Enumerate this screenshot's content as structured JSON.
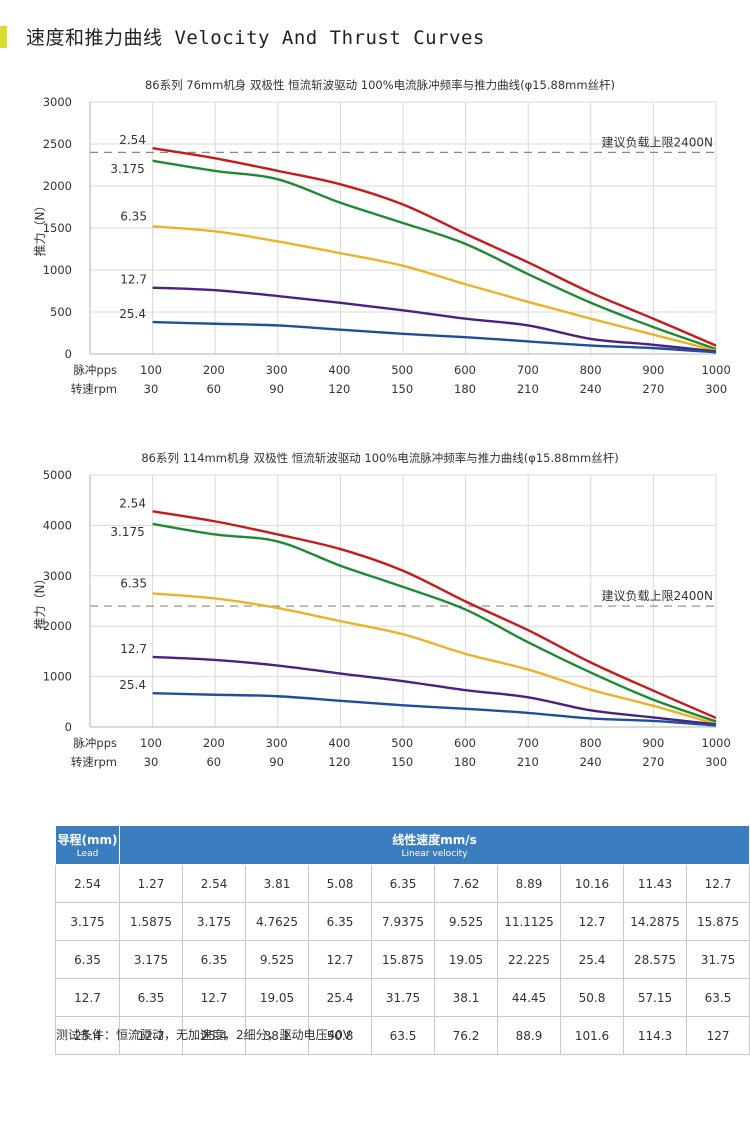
{
  "header": {
    "title": "速度和推力曲线 Velocity And Thrust Curves",
    "accent_color": "#d8df2a"
  },
  "colors": {
    "2.54": "#c8191b",
    "3.175": "#1e8a36",
    "6.35": "#ecb22a",
    "12.7": "#4a2180",
    "25.4": "#1f4f9c",
    "limit": "#888888"
  },
  "chart_data": [
    {
      "type": "line",
      "title": "86系列 76mm机身 双极性 恒流斩波驱动 100%电流脉冲频率与推力曲线(φ15.88mm丝杆)",
      "ylabel": "推力（N）",
      "ylim": [
        0,
        3000
      ],
      "yticks": [
        "0",
        "500",
        "1000",
        "1500",
        "2000",
        "2500",
        "3000"
      ],
      "x_axis_labels": [
        "脉冲pps",
        "转速rpm"
      ],
      "pps": [
        "100",
        "200",
        "300",
        "400",
        "500",
        "600",
        "700",
        "800",
        "900",
        "1000"
      ],
      "rpm": [
        "30",
        "60",
        "90",
        "120",
        "150",
        "180",
        "210",
        "240",
        "270",
        "300"
      ],
      "x": [
        100,
        200,
        300,
        400,
        500,
        600,
        700,
        800,
        900,
        1000
      ],
      "limit": {
        "value": 2400,
        "label": "建议负载上限2400N"
      },
      "series": [
        {
          "name": "2.54",
          "values": [
            2450,
            2330,
            2180,
            2020,
            1780,
            1430,
            1090,
            730,
            420,
            100
          ]
        },
        {
          "name": "3.175",
          "values": [
            2300,
            2180,
            2080,
            1800,
            1560,
            1310,
            950,
            610,
            320,
            60
          ]
        },
        {
          "name": "6.35",
          "values": [
            1520,
            1460,
            1340,
            1200,
            1050,
            830,
            620,
            420,
            230,
            40
          ]
        },
        {
          "name": "12.7",
          "values": [
            790,
            760,
            690,
            610,
            520,
            420,
            340,
            180,
            110,
            30
          ]
        },
        {
          "name": "25.4",
          "values": [
            380,
            360,
            340,
            290,
            240,
            200,
            150,
            100,
            70,
            20
          ]
        }
      ]
    },
    {
      "type": "line",
      "title": "86系列 114mm机身 双极性 恒流斩波驱动 100%电流脉冲频率与推力曲线(φ15.88mm丝杆)",
      "ylabel": "推力（N）",
      "ylim": [
        0,
        5000
      ],
      "yticks": [
        "0",
        "1000",
        "2000",
        "3000",
        "4000",
        "5000"
      ],
      "x_axis_labels": [
        "脉冲pps",
        "转速rpm"
      ],
      "pps": [
        "100",
        "200",
        "300",
        "400",
        "500",
        "600",
        "700",
        "800",
        "900",
        "1000"
      ],
      "rpm": [
        "30",
        "60",
        "90",
        "120",
        "150",
        "180",
        "210",
        "240",
        "270",
        "300"
      ],
      "x": [
        100,
        200,
        300,
        400,
        500,
        600,
        700,
        800,
        900,
        1000
      ],
      "limit": {
        "value": 2400,
        "label": "建议负载上限2400N"
      },
      "series": [
        {
          "name": "2.54",
          "values": [
            4280,
            4080,
            3820,
            3530,
            3100,
            2490,
            1920,
            1280,
            720,
            180
          ]
        },
        {
          "name": "3.175",
          "values": [
            4030,
            3820,
            3680,
            3200,
            2780,
            2330,
            1680,
            1080,
            540,
            110
          ]
        },
        {
          "name": "6.35",
          "values": [
            2650,
            2550,
            2360,
            2100,
            1840,
            1450,
            1140,
            740,
            420,
            60
          ]
        },
        {
          "name": "12.7",
          "values": [
            1390,
            1330,
            1220,
            1060,
            910,
            730,
            590,
            330,
            190,
            50
          ]
        },
        {
          "name": "25.4",
          "values": [
            670,
            640,
            610,
            520,
            430,
            360,
            280,
            170,
            120,
            30
          ]
        }
      ]
    }
  ],
  "table": {
    "lead_header": "导程(mm)",
    "lead_header_en": "Lead",
    "speed_header": "线性速度mm/s",
    "speed_header_en": "Linear velocity",
    "rows": [
      [
        "2.54",
        "1.27",
        "2.54",
        "3.81",
        "5.08",
        "6.35",
        "7.62",
        "8.89",
        "10.16",
        "11.43",
        "12.7"
      ],
      [
        "3.175",
        "1.5875",
        "3.175",
        "4.7625",
        "6.35",
        "7.9375",
        "9.525",
        "11.1125",
        "12.7",
        "14.2875",
        "15.875"
      ],
      [
        "6.35",
        "3.175",
        "6.35",
        "9.525",
        "12.7",
        "15.875",
        "19.05",
        "22.225",
        "25.4",
        "28.575",
        "31.75"
      ],
      [
        "12.7",
        "6.35",
        "12.7",
        "19.05",
        "25.4",
        "31.75",
        "38.1",
        "44.45",
        "50.8",
        "57.15",
        "63.5"
      ],
      [
        "25.4",
        "12.7",
        "25.4",
        "38.1",
        "50.8",
        "63.5",
        "76.2",
        "88.9",
        "101.6",
        "114.3",
        "127"
      ]
    ]
  },
  "note": "测试条件：恒流驱动，无加速度，2细分，驱动电压40V"
}
